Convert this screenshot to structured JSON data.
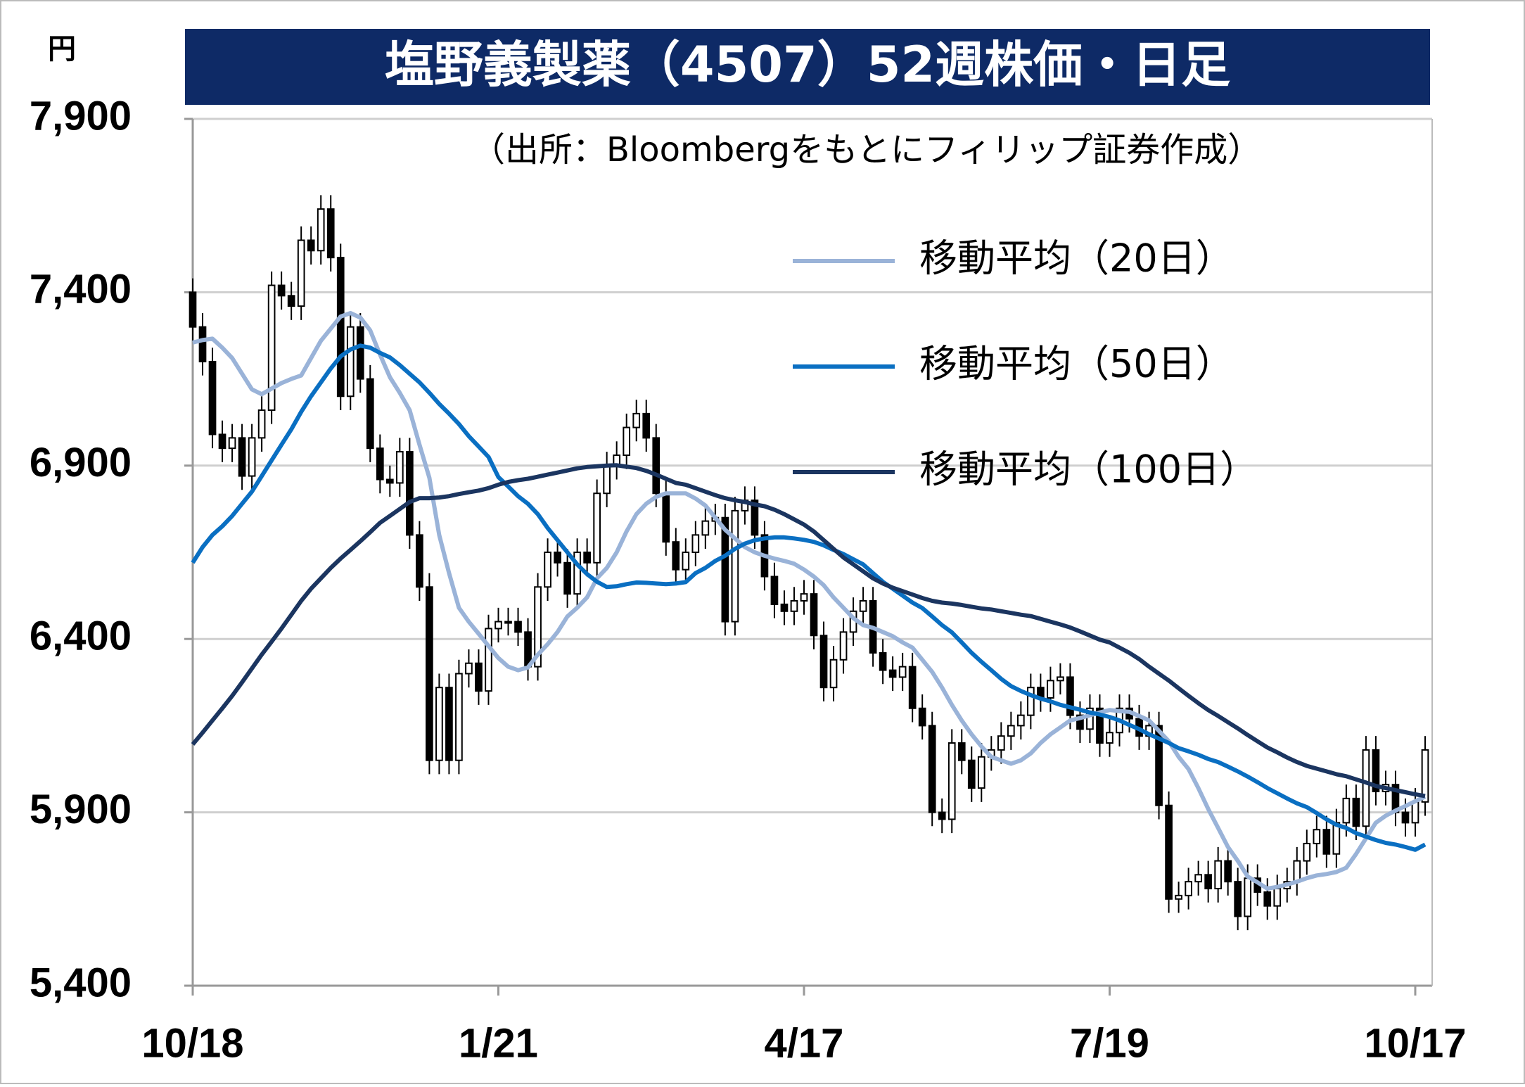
{
  "chart_data": {
    "type": "candlestick",
    "title": "塩野義製薬（4507）52週株価・日足",
    "subtitle": "（出所：Bloombergをもとにフィリップ証券作成）",
    "y_unit": "円",
    "categories": [
      "10/18",
      null,
      null,
      null,
      null,
      null,
      null,
      null,
      null,
      null,
      null,
      null,
      null,
      null,
      null,
      null,
      null,
      null,
      null,
      null,
      null,
      null,
      null,
      null,
      null,
      null,
      null,
      null,
      null,
      null,
      null,
      "1/21",
      null,
      null,
      null,
      null,
      null,
      null,
      null,
      null,
      null,
      null,
      null,
      null,
      null,
      null,
      null,
      null,
      null,
      null,
      null,
      null,
      null,
      null,
      null,
      null,
      null,
      null,
      null,
      null,
      null,
      null,
      "4/17",
      null,
      null,
      null,
      null,
      null,
      null,
      null,
      null,
      null,
      null,
      null,
      null,
      null,
      null,
      null,
      null,
      null,
      null,
      null,
      null,
      null,
      null,
      null,
      null,
      null,
      null,
      null,
      null,
      null,
      null,
      "7/19",
      null,
      null,
      null,
      null,
      null,
      null,
      null,
      null,
      null,
      null,
      null,
      null,
      null,
      null,
      null,
      null,
      null,
      null,
      null,
      null,
      null,
      null,
      null,
      null,
      null,
      null,
      null,
      null,
      null,
      null,
      "10/17",
      null
    ],
    "ylim": [
      5400,
      7900
    ],
    "yticks": [
      {
        "value": 5400,
        "label": "5,400"
      },
      {
        "value": 5900,
        "label": "5,900"
      },
      {
        "value": 6400,
        "label": "6,400"
      },
      {
        "value": 6900,
        "label": "6,900"
      },
      {
        "value": 7400,
        "label": "7,400"
      },
      {
        "value": 7900,
        "label": "7,900"
      }
    ],
    "grid": true,
    "candles": {
      "up_color": "#ffffff",
      "down_color": "#000000",
      "open": [
        7400,
        7300,
        7200,
        6990,
        6950,
        6980,
        6870,
        6980,
        7060,
        7420,
        7390,
        7360,
        7550,
        7520,
        7640,
        7500,
        7100,
        7300,
        7150,
        6950,
        6860,
        6850,
        6940,
        6700,
        6550,
        6050,
        6260,
        6050,
        6300,
        6330,
        6250,
        6430,
        6450,
        6450,
        6420,
        6320,
        6550,
        6650,
        6620,
        6530,
        6650,
        6620,
        6820,
        6900,
        6930,
        7010,
        7050,
        6980,
        6820,
        6680,
        6600,
        6650,
        6700,
        6740,
        6750,
        6450,
        6770,
        6800,
        6700,
        6580,
        6500,
        6480,
        6510,
        6530,
        6410,
        6260,
        6340,
        6420,
        6480,
        6510,
        6360,
        6310,
        6290,
        6320,
        6200,
        6150,
        5900,
        5880,
        6100,
        6050,
        5970,
        6060,
        6080,
        6120,
        6150,
        6180,
        6260,
        6230,
        6280,
        6290,
        6180,
        6140,
        6200,
        6100,
        6130,
        6200,
        6170,
        6120,
        6150,
        5920,
        5650,
        5660,
        5700,
        5720,
        5680,
        5760,
        5700,
        5600,
        5710,
        5670,
        5630,
        5680,
        5700,
        5760,
        5810,
        5850,
        5780,
        5870,
        5940,
        5860,
        6080,
        5960,
        5980,
        5900,
        5870,
        5930
      ],
      "high": [
        7440,
        7340,
        7240,
        7030,
        7020,
        7020,
        7020,
        7100,
        7460,
        7460,
        7430,
        7590,
        7590,
        7680,
        7680,
        7540,
        7340,
        7340,
        7190,
        6990,
        6900,
        6980,
        6980,
        6740,
        6590,
        6300,
        6300,
        6340,
        6370,
        6370,
        6470,
        6490,
        6490,
        6490,
        6460,
        6590,
        6690,
        6690,
        6660,
        6690,
        6690,
        6860,
        6940,
        6970,
        7050,
        7090,
        7090,
        7020,
        6860,
        6720,
        6690,
        6740,
        6780,
        6790,
        6790,
        6810,
        6840,
        6840,
        6740,
        6620,
        6540,
        6550,
        6570,
        6570,
        6450,
        6380,
        6460,
        6520,
        6550,
        6550,
        6400,
        6350,
        6360,
        6360,
        6240,
        6190,
        5940,
        6140,
        6140,
        6090,
        6100,
        6120,
        6160,
        6190,
        6220,
        6300,
        6300,
        6320,
        6330,
        6330,
        6220,
        6240,
        6240,
        6170,
        6240,
        6240,
        6210,
        6190,
        6190,
        5960,
        5700,
        5740,
        5760,
        5760,
        5800,
        5800,
        5740,
        5750,
        5750,
        5710,
        5720,
        5740,
        5800,
        5850,
        5890,
        5890,
        5910,
        5980,
        5980,
        6120,
        6120,
        6020,
        6020,
        5940,
        5970,
        6120
      ],
      "low": [
        7260,
        7160,
        6950,
        6910,
        6910,
        6830,
        6830,
        6940,
        7020,
        7350,
        7320,
        7320,
        7480,
        7480,
        7460,
        7060,
        7060,
        7110,
        6910,
        6820,
        6810,
        6810,
        6660,
        6510,
        6010,
        6010,
        6010,
        6010,
        6260,
        6210,
        6210,
        6390,
        6410,
        6380,
        6280,
        6280,
        6510,
        6580,
        6490,
        6490,
        6580,
        6580,
        6780,
        6860,
        6890,
        6970,
        6940,
        6780,
        6640,
        6560,
        6560,
        6610,
        6660,
        6700,
        6410,
        6410,
        6730,
        6660,
        6540,
        6460,
        6440,
        6440,
        6470,
        6370,
        6220,
        6220,
        6300,
        6380,
        6440,
        6320,
        6270,
        6250,
        6250,
        6160,
        6110,
        5860,
        5840,
        5840,
        6010,
        5930,
        5930,
        6020,
        6040,
        6080,
        6110,
        6140,
        6190,
        6190,
        6240,
        6140,
        6100,
        6100,
        6060,
        6060,
        6090,
        6130,
        6080,
        6080,
        5880,
        5610,
        5610,
        5620,
        5660,
        5640,
        5640,
        5660,
        5560,
        5560,
        5630,
        5590,
        5590,
        5640,
        5660,
        5720,
        5770,
        5740,
        5740,
        5830,
        5820,
        5820,
        5920,
        5920,
        5860,
        5830,
        5830,
        5890
      ],
      "close": [
        7300,
        7200,
        6990,
        6950,
        6980,
        6870,
        6980,
        7060,
        7420,
        7390,
        7360,
        7550,
        7520,
        7640,
        7500,
        7100,
        7300,
        7150,
        6950,
        6860,
        6850,
        6940,
        6700,
        6550,
        6050,
        6260,
        6050,
        6300,
        6330,
        6250,
        6430,
        6450,
        6450,
        6420,
        6320,
        6550,
        6650,
        6620,
        6530,
        6650,
        6620,
        6820,
        6900,
        6930,
        7010,
        7050,
        6980,
        6820,
        6680,
        6600,
        6650,
        6700,
        6740,
        6750,
        6450,
        6770,
        6800,
        6700,
        6580,
        6500,
        6480,
        6510,
        6530,
        6410,
        6260,
        6340,
        6420,
        6480,
        6510,
        6360,
        6310,
        6290,
        6320,
        6200,
        6150,
        5900,
        5880,
        6100,
        6050,
        5970,
        6060,
        6080,
        6120,
        6150,
        6180,
        6260,
        6230,
        6280,
        6290,
        6180,
        6140,
        6200,
        6100,
        6130,
        6200,
        6170,
        6120,
        6150,
        5920,
        5650,
        5660,
        5700,
        5720,
        5680,
        5760,
        5700,
        5600,
        5710,
        5670,
        5630,
        5680,
        5700,
        5760,
        5810,
        5850,
        5780,
        5870,
        5940,
        5860,
        6080,
        5960,
        5980,
        5900,
        5870,
        5930,
        6080
      ]
    },
    "series": [
      {
        "name": "移動平均（20日）",
        "color": "#9ab3d8",
        "values": [
          7255,
          7262,
          7266,
          7240,
          7210,
          7165,
          7120,
          7106,
          7122,
          7138,
          7150,
          7160,
          7210,
          7260,
          7295,
          7330,
          7340,
          7327,
          7290,
          7220,
          7155,
          7110,
          7060,
          6960,
          6865,
          6700,
          6590,
          6490,
          6450,
          6415,
          6380,
          6345,
          6320,
          6310,
          6318,
          6355,
          6385,
          6420,
          6465,
          6490,
          6520,
          6575,
          6605,
          6650,
          6710,
          6760,
          6790,
          6810,
          6820,
          6820,
          6820,
          6805,
          6785,
          6750,
          6715,
          6690,
          6665,
          6650,
          6640,
          6632,
          6625,
          6617,
          6600,
          6580,
          6555,
          6520,
          6490,
          6460,
          6440,
          6432,
          6420,
          6408,
          6390,
          6375,
          6340,
          6305,
          6260,
          6210,
          6165,
          6125,
          6090,
          6060,
          6050,
          6040,
          6050,
          6070,
          6100,
          6125,
          6145,
          6165,
          6172,
          6180,
          6188,
          6195,
          6192,
          6190,
          6178,
          6165,
          6135,
          6105,
          6060,
          6025,
          5970,
          5910,
          5855,
          5800,
          5760,
          5715,
          5698,
          5680,
          5685,
          5692,
          5700,
          5710,
          5718,
          5722,
          5728,
          5740,
          5780,
          5825,
          5870,
          5890,
          5905,
          5918,
          5932,
          5945
        ]
      },
      {
        "name": "移動平均（50日）",
        "color": "#0a6fc2",
        "values": [
          6620,
          6665,
          6700,
          6725,
          6755,
          6790,
          6825,
          6870,
          6915,
          6960,
          7005,
          7055,
          7100,
          7140,
          7180,
          7215,
          7235,
          7246,
          7240,
          7225,
          7212,
          7190,
          7165,
          7140,
          7110,
          7078,
          7050,
          7020,
          6985,
          6955,
          6925,
          6867,
          6840,
          6812,
          6790,
          6760,
          6720,
          6685,
          6650,
          6615,
          6587,
          6565,
          6550,
          6552,
          6558,
          6563,
          6562,
          6560,
          6558,
          6560,
          6564,
          6590,
          6605,
          6625,
          6640,
          6660,
          6675,
          6685,
          6690,
          6693,
          6693,
          6690,
          6686,
          6680,
          6670,
          6657,
          6645,
          6630,
          6615,
          6590,
          6565,
          6545,
          6525,
          6505,
          6489,
          6465,
          6440,
          6419,
          6390,
          6360,
          6334,
          6310,
          6285,
          6264,
          6250,
          6238,
          6228,
          6220,
          6210,
          6203,
          6196,
          6188,
          6182,
          6175,
          6165,
          6152,
          6140,
          6125,
          6113,
          6100,
          6085,
          6076,
          6066,
          6054,
          6045,
          6032,
          6018,
          6003,
          5987,
          5970,
          5955,
          5940,
          5926,
          5915,
          5898,
          5880,
          5864,
          5855,
          5840,
          5830,
          5820,
          5812,
          5807,
          5800,
          5792,
          5807
        ]
      },
      {
        "name": "移動平均（100日）",
        "color": "#1b3560",
        "values": [
          6096,
          6130,
          6165,
          6200,
          6236,
          6275,
          6315,
          6355,
          6392,
          6430,
          6470,
          6510,
          6545,
          6575,
          6605,
          6632,
          6657,
          6682,
          6708,
          6735,
          6755,
          6775,
          6795,
          6806,
          6806,
          6808,
          6812,
          6818,
          6823,
          6828,
          6835,
          6845,
          6853,
          6858,
          6862,
          6868,
          6874,
          6880,
          6886,
          6892,
          6896,
          6898,
          6900,
          6901,
          6897,
          6893,
          6885,
          6874,
          6862,
          6850,
          6845,
          6835,
          6825,
          6815,
          6806,
          6800,
          6795,
          6788,
          6783,
          6773,
          6760,
          6745,
          6730,
          6710,
          6685,
          6660,
          6635,
          6615,
          6595,
          6575,
          6560,
          6548,
          6538,
          6528,
          6518,
          6510,
          6505,
          6502,
          6498,
          6493,
          6488,
          6485,
          6480,
          6475,
          6470,
          6466,
          6458,
          6450,
          6442,
          6433,
          6422,
          6410,
          6398,
          6390,
          6375,
          6360,
          6342,
          6320,
          6300,
          6280,
          6258,
          6236,
          6215,
          6195,
          6178,
          6160,
          6142,
          6123,
          6105,
          6087,
          6073,
          6058,
          6045,
          6034,
          6026,
          6018,
          6010,
          6004,
          5995,
          5986,
          5976,
          5970,
          5964,
          5958,
          5952,
          5947
        ]
      }
    ]
  }
}
